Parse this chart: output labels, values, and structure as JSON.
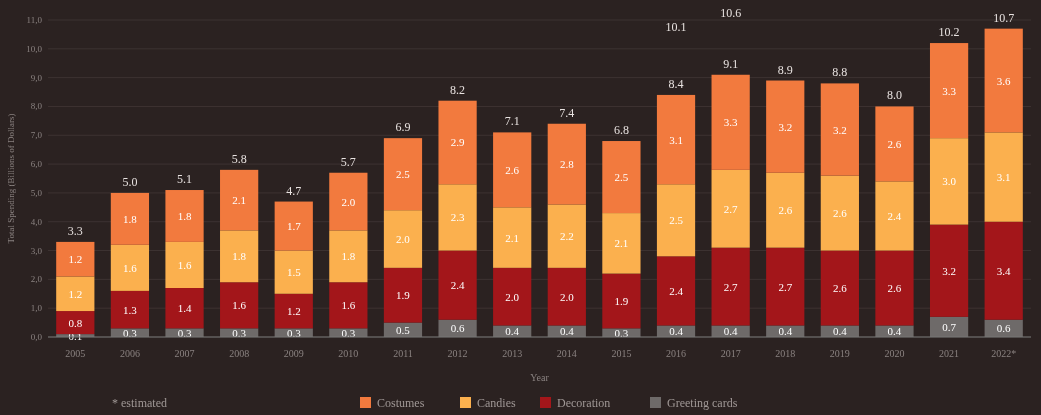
{
  "chart_data": {
    "type": "bar",
    "stacked": true,
    "xlabel": "Year",
    "ylabel": "Total Spending (Billions of Dollars)",
    "categories": [
      "2005",
      "2006",
      "2007",
      "2008",
      "2009",
      "2010",
      "2011",
      "2012",
      "2013",
      "2014",
      "2015",
      "2016",
      "2017",
      "2018",
      "2019",
      "2020",
      "2021",
      "2022*"
    ],
    "series": [
      {
        "name": "Greeting cards",
        "color": "#6e6a69",
        "values": [
          0.1,
          0.3,
          0.3,
          0.3,
          0.3,
          0.3,
          0.5,
          0.6,
          0.4,
          0.4,
          0.3,
          0.4,
          0.4,
          0.4,
          0.4,
          0.4,
          0.7,
          0.6
        ],
        "value_labels": [
          "0.1",
          "0.3",
          "0.3",
          "0.3",
          "0.3",
          "0.3",
          "0.5",
          "0.6",
          "0.4",
          "0.4",
          "0.3",
          "0.4",
          "0.4",
          "0.4",
          "0.4",
          "0.4",
          "0.7",
          "0.6"
        ]
      },
      {
        "name": "Decoration",
        "color": "#a3161a",
        "values": [
          0.8,
          1.3,
          1.4,
          1.6,
          1.2,
          1.6,
          1.9,
          2.4,
          2.0,
          2.0,
          1.9,
          2.4,
          2.7,
          2.7,
          2.6,
          2.6,
          3.2,
          3.4
        ],
        "value_labels": [
          "0.8",
          "1.3",
          "1.4",
          "1.6",
          "1.2",
          "1.6",
          "1.9",
          "2.4",
          "2.0",
          "2.0",
          "1.9",
          "2.4",
          "2.7",
          "2.7",
          "2.6",
          "2.6",
          "3.2",
          "3.4"
        ]
      },
      {
        "name": "Candies",
        "color": "#fbb04e",
        "values": [
          1.2,
          1.6,
          1.6,
          1.8,
          1.5,
          1.8,
          2.0,
          2.3,
          2.1,
          2.2,
          2.1,
          2.5,
          2.7,
          2.6,
          2.6,
          2.4,
          3.0,
          3.1
        ],
        "value_labels": [
          "1.2",
          "1.6",
          "1.6",
          "1.8",
          "1.5",
          "1.8",
          "2.0",
          "2.3",
          "2.1",
          "2.2",
          "2.1",
          "2.5",
          "2.7",
          "2.6",
          "2.6",
          "2.4",
          "3.0",
          "3.1"
        ]
      },
      {
        "name": "Costumes",
        "color": "#f27a3e",
        "values": [
          1.2,
          1.8,
          1.8,
          2.1,
          1.7,
          2.0,
          2.5,
          2.9,
          2.6,
          2.8,
          2.5,
          3.1,
          3.3,
          3.2,
          3.2,
          2.6,
          3.3,
          3.6
        ],
        "value_labels": [
          "1.2",
          "1.8",
          "1.8",
          "2.1",
          "1.7",
          "2.0",
          "2.5",
          "2.9",
          "2.6",
          "2.8",
          "2.5",
          "3.1",
          "3.3",
          "3.2",
          "3.2",
          "2.6",
          "3.3",
          "3.6"
        ]
      }
    ],
    "totals": [
      "3.3",
      "5.0",
      "5.1",
      "5.8",
      "4.7",
      "5.7",
      "6.9",
      "8.2",
      "7.1",
      "7.4",
      "6.8",
      "8.4",
      "9.1",
      "8.9",
      "8.8",
      "8.0",
      "10.2",
      "10.7"
    ],
    "ylim": [
      0,
      11
    ],
    "yticks": [
      {
        "value": 0,
        "label": "0,0"
      },
      {
        "value": 1,
        "label": "1,0"
      },
      {
        "value": 2,
        "label": "2,0"
      },
      {
        "value": 3,
        "label": "3,0"
      },
      {
        "value": 4,
        "label": "4,0"
      },
      {
        "value": 5,
        "label": "5,0"
      },
      {
        "value": 6,
        "label": "6,0"
      },
      {
        "value": 7,
        "label": "7,0"
      },
      {
        "value": 8,
        "label": "8,0"
      },
      {
        "value": 9,
        "label": "9,0"
      },
      {
        "value": 10,
        "label": "10,0"
      },
      {
        "value": 11,
        "label": "11,0"
      }
    ],
    "grid": "y",
    "legend": "bottom",
    "annotations": [
      "10.1",
      "10.6",
      "* estimated"
    ]
  }
}
